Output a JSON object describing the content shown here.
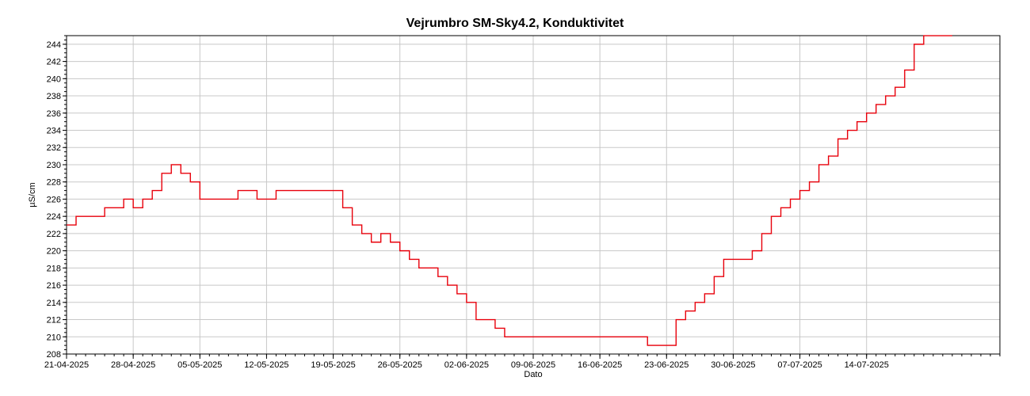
{
  "chart_data": {
    "type": "line",
    "title": "Vejrumbro SM-Sky4.2, Konduktivitet",
    "xlabel": "Dato",
    "ylabel": "µS/cm",
    "ylim": [
      208,
      245
    ],
    "xlim": [
      "2025-04-21",
      "2025-07-28"
    ],
    "yticks": [
      208,
      210,
      212,
      214,
      216,
      218,
      220,
      222,
      224,
      226,
      228,
      230,
      232,
      234,
      236,
      238,
      240,
      242,
      244
    ],
    "xticks": [
      "21-04-2025",
      "28-04-2025",
      "05-05-2025",
      "12-05-2025",
      "19-05-2025",
      "26-05-2025",
      "02-06-2025",
      "09-06-2025",
      "16-06-2025",
      "23-06-2025",
      "30-06-2025",
      "07-07-2025",
      "14-07-2025"
    ],
    "grid": true,
    "legend": "none",
    "series": [
      {
        "color": "#e8000b",
        "x": [
          "2025-04-21",
          "2025-04-22",
          "2025-04-23",
          "2025-04-24",
          "2025-04-25",
          "2025-04-26",
          "2025-04-27",
          "2025-04-28",
          "2025-04-29",
          "2025-04-30",
          "2025-05-01",
          "2025-05-02",
          "2025-05-03",
          "2025-05-04",
          "2025-05-05",
          "2025-05-06",
          "2025-05-07",
          "2025-05-08",
          "2025-05-09",
          "2025-05-10",
          "2025-05-11",
          "2025-05-12",
          "2025-05-13",
          "2025-05-14",
          "2025-05-15",
          "2025-05-16",
          "2025-05-17",
          "2025-05-18",
          "2025-05-19",
          "2025-05-20",
          "2025-05-21",
          "2025-05-22",
          "2025-05-23",
          "2025-05-24",
          "2025-05-25",
          "2025-05-26",
          "2025-05-27",
          "2025-05-28",
          "2025-05-29",
          "2025-05-30",
          "2025-05-31",
          "2025-06-01",
          "2025-06-02",
          "2025-06-03",
          "2025-06-04",
          "2025-06-05",
          "2025-06-06",
          "2025-06-07",
          "2025-06-08",
          "2025-06-09",
          "2025-06-10",
          "2025-06-11",
          "2025-06-12",
          "2025-06-13",
          "2025-06-14",
          "2025-06-15",
          "2025-06-16",
          "2025-06-17",
          "2025-06-18",
          "2025-06-19",
          "2025-06-20",
          "2025-06-21",
          "2025-06-22",
          "2025-06-23",
          "2025-06-24",
          "2025-06-25",
          "2025-06-26",
          "2025-06-27",
          "2025-06-28",
          "2025-06-29",
          "2025-06-30",
          "2025-07-01",
          "2025-07-02",
          "2025-07-03",
          "2025-07-04",
          "2025-07-05",
          "2025-07-06",
          "2025-07-07",
          "2025-07-08",
          "2025-07-09",
          "2025-07-10",
          "2025-07-11",
          "2025-07-12",
          "2025-07-13",
          "2025-07-14",
          "2025-07-15",
          "2025-07-16",
          "2025-07-17",
          "2025-07-18",
          "2025-07-19",
          "2025-07-20",
          "2025-07-21",
          "2025-07-22",
          "2025-07-23"
        ],
        "y": [
          223,
          224,
          224,
          224,
          225,
          225,
          226,
          225,
          226,
          227,
          229,
          230,
          229,
          228,
          226,
          226,
          226,
          226,
          227,
          227,
          226,
          226,
          227,
          227,
          227,
          227,
          227,
          227,
          227,
          225,
          223,
          222,
          221,
          222,
          221,
          220,
          219,
          218,
          218,
          217,
          216,
          215,
          214,
          212,
          212,
          211,
          210,
          210,
          210,
          210,
          210,
          210,
          210,
          210,
          210,
          210,
          210,
          210,
          210,
          210,
          210,
          209,
          209,
          209,
          212,
          213,
          214,
          215,
          217,
          219,
          219,
          219,
          220,
          222,
          224,
          225,
          226,
          227,
          228,
          230,
          231,
          233,
          234,
          235,
          236,
          237,
          238,
          239,
          241,
          244,
          245,
          245,
          245,
          245
        ]
      }
    ]
  }
}
